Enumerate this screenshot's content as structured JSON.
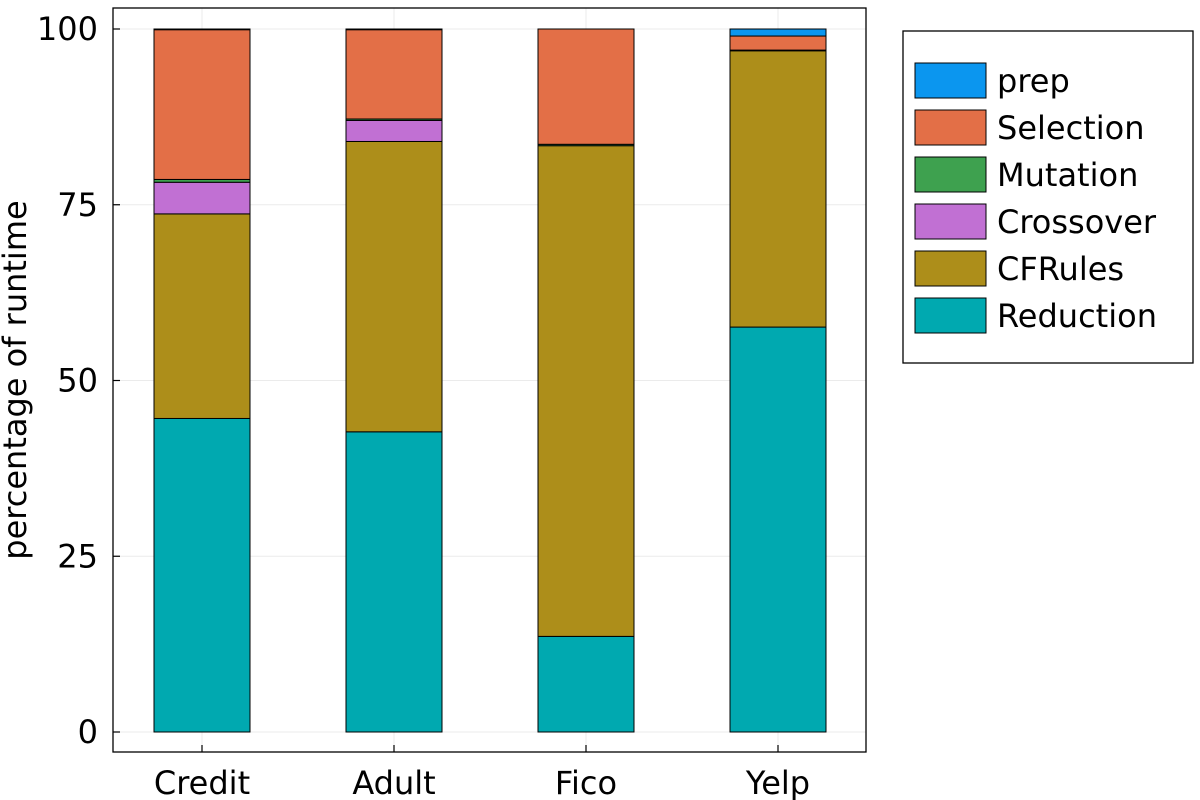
{
  "chart_data": {
    "type": "bar",
    "stacked": true,
    "title": "",
    "xlabel": "",
    "ylabel": "percentage of runtime",
    "categories": [
      "Credit",
      "Adult",
      "Fico",
      "Yelp"
    ],
    "yticks": [
      "0",
      "25",
      "50",
      "75",
      "100"
    ],
    "ylim": [
      0,
      100
    ],
    "grid": true,
    "legend_position": "top-right",
    "series": [
      {
        "name": "Reduction",
        "color": "#00a9b0",
        "values": [
          44.6,
          42.7,
          13.6,
          57.6
        ]
      },
      {
        "name": "CFRules",
        "color": "#ad8e1a",
        "values": [
          29.1,
          41.3,
          69.8,
          39.3
        ]
      },
      {
        "name": "Crossover",
        "color": "#c170d3",
        "values": [
          4.5,
          3.0,
          0.0,
          0.0
        ]
      },
      {
        "name": "Mutation",
        "color": "#3ea14f",
        "values": [
          0.4,
          0.2,
          0.2,
          0.1
        ]
      },
      {
        "name": "Selection",
        "color": "#e36f47",
        "values": [
          21.3,
          12.7,
          16.4,
          2.0
        ]
      },
      {
        "name": "prep",
        "color": "#0b96ef",
        "values": [
          0.1,
          0.1,
          0.0,
          1.0
        ]
      }
    ],
    "legend_order": [
      "prep",
      "Selection",
      "Mutation",
      "Crossover",
      "CFRules",
      "Reduction"
    ]
  }
}
